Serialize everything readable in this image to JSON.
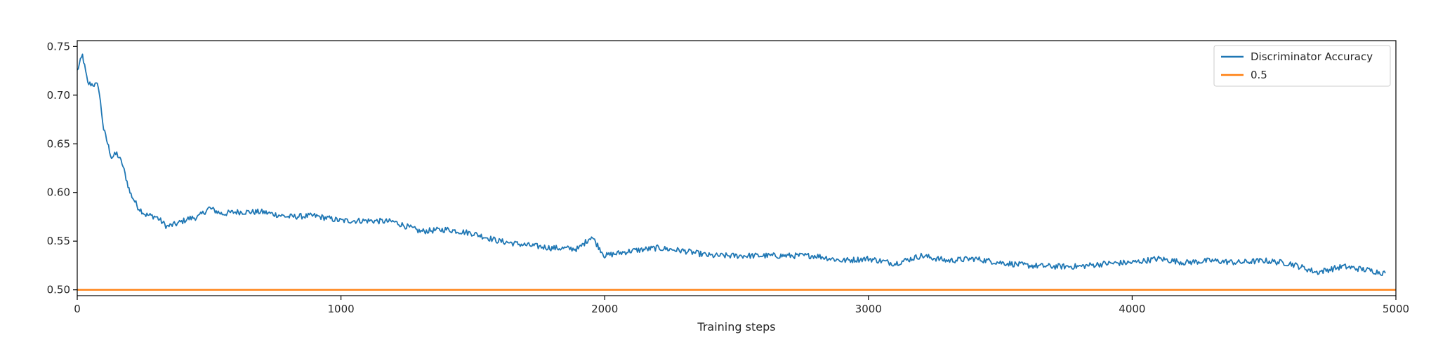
{
  "chart_data": {
    "type": "line",
    "title": "",
    "xlabel": "Training steps",
    "ylabel": "",
    "xlim": [
      0,
      5000
    ],
    "ylim": [
      0.494,
      0.756
    ],
    "x_ticks": [
      0,
      1000,
      2000,
      3000,
      4000,
      5000
    ],
    "y_ticks": [
      0.5,
      0.55,
      0.6,
      0.65,
      0.7,
      0.75
    ],
    "x_tick_labels": [
      "0",
      "1000",
      "2000",
      "3000",
      "4000",
      "5000"
    ],
    "y_tick_labels": [
      "0.50",
      "0.55",
      "0.60",
      "0.65",
      "0.70",
      "0.75"
    ],
    "grid": false,
    "legend_position": "top-right",
    "series": [
      {
        "name": "Discriminator Accuracy",
        "color": "#1f77b4",
        "x": [
          0,
          20,
          40,
          60,
          80,
          100,
          130,
          150,
          170,
          200,
          230,
          260,
          300,
          340,
          380,
          420,
          460,
          500,
          550,
          600,
          650,
          700,
          800,
          900,
          1000,
          1100,
          1200,
          1300,
          1400,
          1500,
          1600,
          1700,
          1800,
          1900,
          1950,
          2000,
          2100,
          2200,
          2300,
          2400,
          2500,
          2600,
          2700,
          2800,
          2900,
          3000,
          3100,
          3200,
          3300,
          3400,
          3500,
          3600,
          3700,
          3800,
          3900,
          4000,
          4100,
          4200,
          4300,
          4400,
          4500,
          4600,
          4700,
          4800,
          4900,
          4960
        ],
        "y": [
          0.725,
          0.741,
          0.712,
          0.711,
          0.71,
          0.665,
          0.636,
          0.64,
          0.63,
          0.6,
          0.585,
          0.577,
          0.575,
          0.565,
          0.568,
          0.573,
          0.575,
          0.584,
          0.578,
          0.58,
          0.58,
          0.58,
          0.575,
          0.576,
          0.571,
          0.571,
          0.57,
          0.56,
          0.562,
          0.558,
          0.55,
          0.546,
          0.543,
          0.542,
          0.555,
          0.535,
          0.54,
          0.543,
          0.54,
          0.535,
          0.535,
          0.535,
          0.535,
          0.535,
          0.53,
          0.532,
          0.527,
          0.535,
          0.53,
          0.532,
          0.528,
          0.525,
          0.524,
          0.524,
          0.527,
          0.528,
          0.532,
          0.528,
          0.53,
          0.528,
          0.53,
          0.527,
          0.518,
          0.524,
          0.52,
          0.517
        ]
      },
      {
        "name": "0.5",
        "color": "#ff7f0e",
        "x": [
          0,
          5000
        ],
        "y": [
          0.5,
          0.5
        ]
      }
    ]
  }
}
